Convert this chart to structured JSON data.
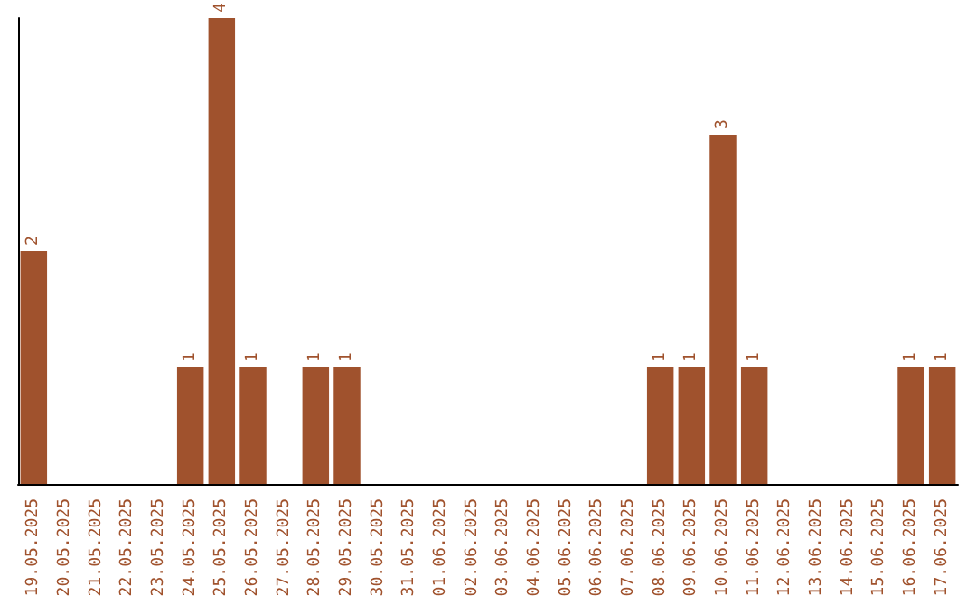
{
  "chart_data": {
    "type": "bar",
    "categories": [
      "19.05.2025",
      "20.05.2025",
      "21.05.2025",
      "22.05.2025",
      "23.05.2025",
      "24.05.2025",
      "25.05.2025",
      "26.05.2025",
      "27.05.2025",
      "28.05.2025",
      "29.05.2025",
      "30.05.2025",
      "31.05.2025",
      "01.06.2025",
      "02.06.2025",
      "03.06.2025",
      "04.06.2025",
      "05.06.2025",
      "06.06.2025",
      "07.06.2025",
      "08.06.2025",
      "09.06.2025",
      "10.06.2025",
      "11.06.2025",
      "12.06.2025",
      "13.06.2025",
      "14.06.2025",
      "15.06.2025",
      "16.06.2025",
      "17.06.2025"
    ],
    "values": [
      2,
      0,
      0,
      0,
      0,
      1,
      4,
      1,
      0,
      1,
      1,
      0,
      0,
      0,
      0,
      0,
      0,
      0,
      0,
      0,
      1,
      1,
      3,
      1,
      0,
      0,
      0,
      0,
      1,
      1
    ],
    "value_labels": [
      "2",
      null,
      null,
      null,
      null,
      "1",
      "4",
      "1",
      null,
      "1",
      "1",
      null,
      null,
      null,
      null,
      null,
      null,
      null,
      null,
      null,
      "1",
      "1",
      "3",
      "1",
      null,
      null,
      null,
      null,
      "1",
      "1"
    ],
    "color": "#a0522d",
    "tick_labels": "x",
    "grid": false
  }
}
